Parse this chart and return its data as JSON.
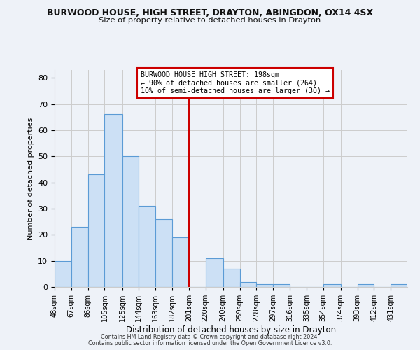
{
  "title": "BURWOOD HOUSE, HIGH STREET, DRAYTON, ABINGDON, OX14 4SX",
  "subtitle": "Size of property relative to detached houses in Drayton",
  "xlabel": "Distribution of detached houses by size in Drayton",
  "ylabel": "Number of detached properties",
  "bin_labels": [
    "48sqm",
    "67sqm",
    "86sqm",
    "105sqm",
    "125sqm",
    "144sqm",
    "163sqm",
    "182sqm",
    "201sqm",
    "220sqm",
    "240sqm",
    "259sqm",
    "278sqm",
    "297sqm",
    "316sqm",
    "335sqm",
    "354sqm",
    "374sqm",
    "393sqm",
    "412sqm",
    "431sqm"
  ],
  "bar_values": [
    10,
    23,
    43,
    66,
    50,
    31,
    26,
    19,
    0,
    11,
    7,
    2,
    1,
    1,
    0,
    0,
    1,
    0,
    1,
    0,
    1
  ],
  "bin_edges": [
    48,
    67,
    86,
    105,
    125,
    144,
    163,
    182,
    201,
    220,
    240,
    259,
    278,
    297,
    316,
    335,
    354,
    374,
    393,
    412,
    431,
    450
  ],
  "bar_color": "#cce0f5",
  "bar_edge_color": "#5b9bd5",
  "vline_x": 201,
  "vline_color": "#cc0000",
  "annotation_line1": "BURWOOD HOUSE HIGH STREET: 198sqm",
  "annotation_line2": "← 90% of detached houses are smaller (264)",
  "annotation_line3": "10% of semi-detached houses are larger (30) →",
  "annotation_box_color": "#cc0000",
  "annotation_bg": "#ffffff",
  "ylim": [
    0,
    83
  ],
  "yticks": [
    0,
    10,
    20,
    30,
    40,
    50,
    60,
    70,
    80
  ],
  "grid_color": "#cccccc",
  "background_color": "#eef2f8",
  "footer1": "Contains HM Land Registry data © Crown copyright and database right 2024.",
  "footer2": "Contains public sector information licensed under the Open Government Licence v3.0."
}
